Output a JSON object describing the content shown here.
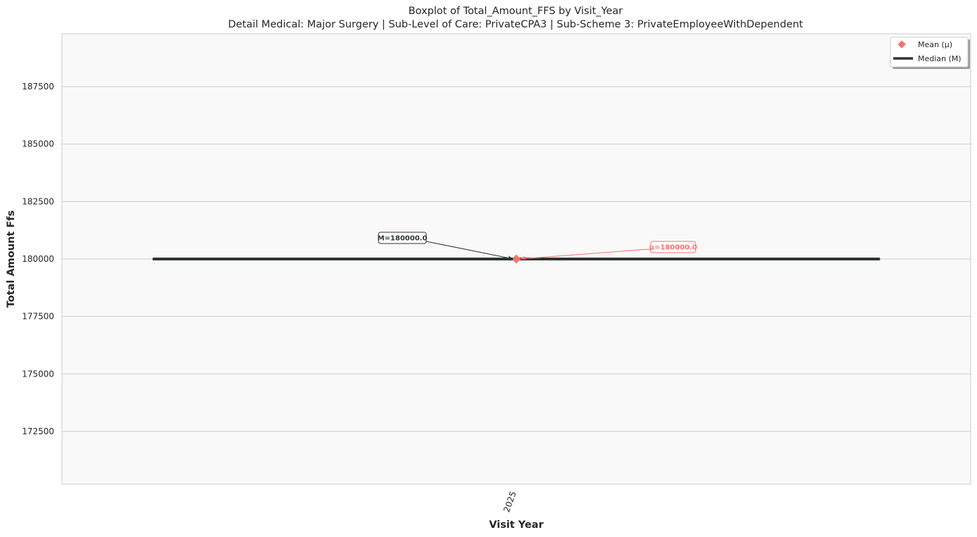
{
  "chart_data": {
    "type": "box",
    "title": "Boxplot of Total_Amount_FFS by Visit_Year",
    "subtitle": "Detail Medical: Major Surgery | Sub-Level of Care: PrivateCPA3 | Sub-Scheme 3: PrivateEmployeeWithDependent",
    "xlabel": "Visit Year",
    "ylabel": "Total Amount Ffs",
    "categories": [
      "2025"
    ],
    "yticks": [
      172500,
      175000,
      177500,
      180000,
      182500,
      185000,
      187500
    ],
    "ylim": [
      170200,
      189800
    ],
    "grid": true,
    "legend_position": "top-right",
    "boxes": [
      {
        "category": "2025",
        "median": 180000.0,
        "mean": 180000.0,
        "q1": 180000.0,
        "q3": 180000.0,
        "whisker_low": 180000.0,
        "whisker_high": 180000.0
      }
    ],
    "legend": [
      {
        "label": "Mean (μ)",
        "marker": "diamond",
        "color": "#f87171"
      },
      {
        "label": "Median (M)",
        "marker": "line",
        "color": "#2d3436"
      }
    ],
    "annotations": {
      "median_label": "M=180000.0",
      "mean_label": "μ=180000.0"
    },
    "colors": {
      "mean": "#f87171",
      "median": "#2d3436",
      "plot_bg": "#f9f9f9",
      "grid": "#cccccc"
    }
  }
}
